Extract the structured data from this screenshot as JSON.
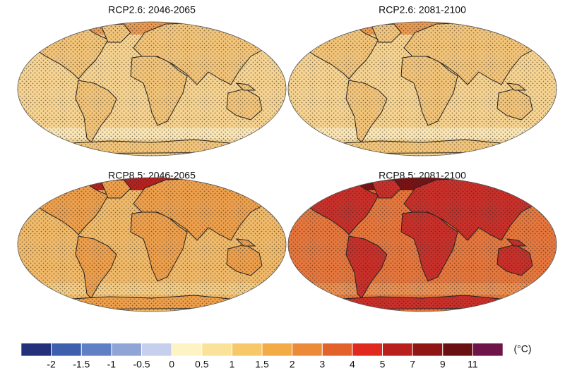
{
  "panels": [
    {
      "title": "RCP2.6: 2046-2065"
    },
    {
      "title": "RCP2.6: 2081-2100"
    },
    {
      "title": "RCP8.5: 2046-2065"
    },
    {
      "title": "RCP8.5: 2081-2100"
    }
  ],
  "colorbar": {
    "ticks": [
      -2,
      -1.5,
      -1,
      -0.5,
      0,
      0.5,
      1,
      1.5,
      2,
      3,
      4,
      5,
      7,
      9,
      11
    ],
    "colors": [
      "#24307a",
      "#3d5fae",
      "#5f80c4",
      "#8fa5d6",
      "#c6cfeb",
      "#fdf3c4",
      "#fbe29b",
      "#f7c867",
      "#f2ab45",
      "#ec8b37",
      "#e3622b",
      "#e02a20",
      "#b91f1d",
      "#911515",
      "#6a0f12",
      "#6e1448"
    ],
    "unit": "(°C)"
  }
}
